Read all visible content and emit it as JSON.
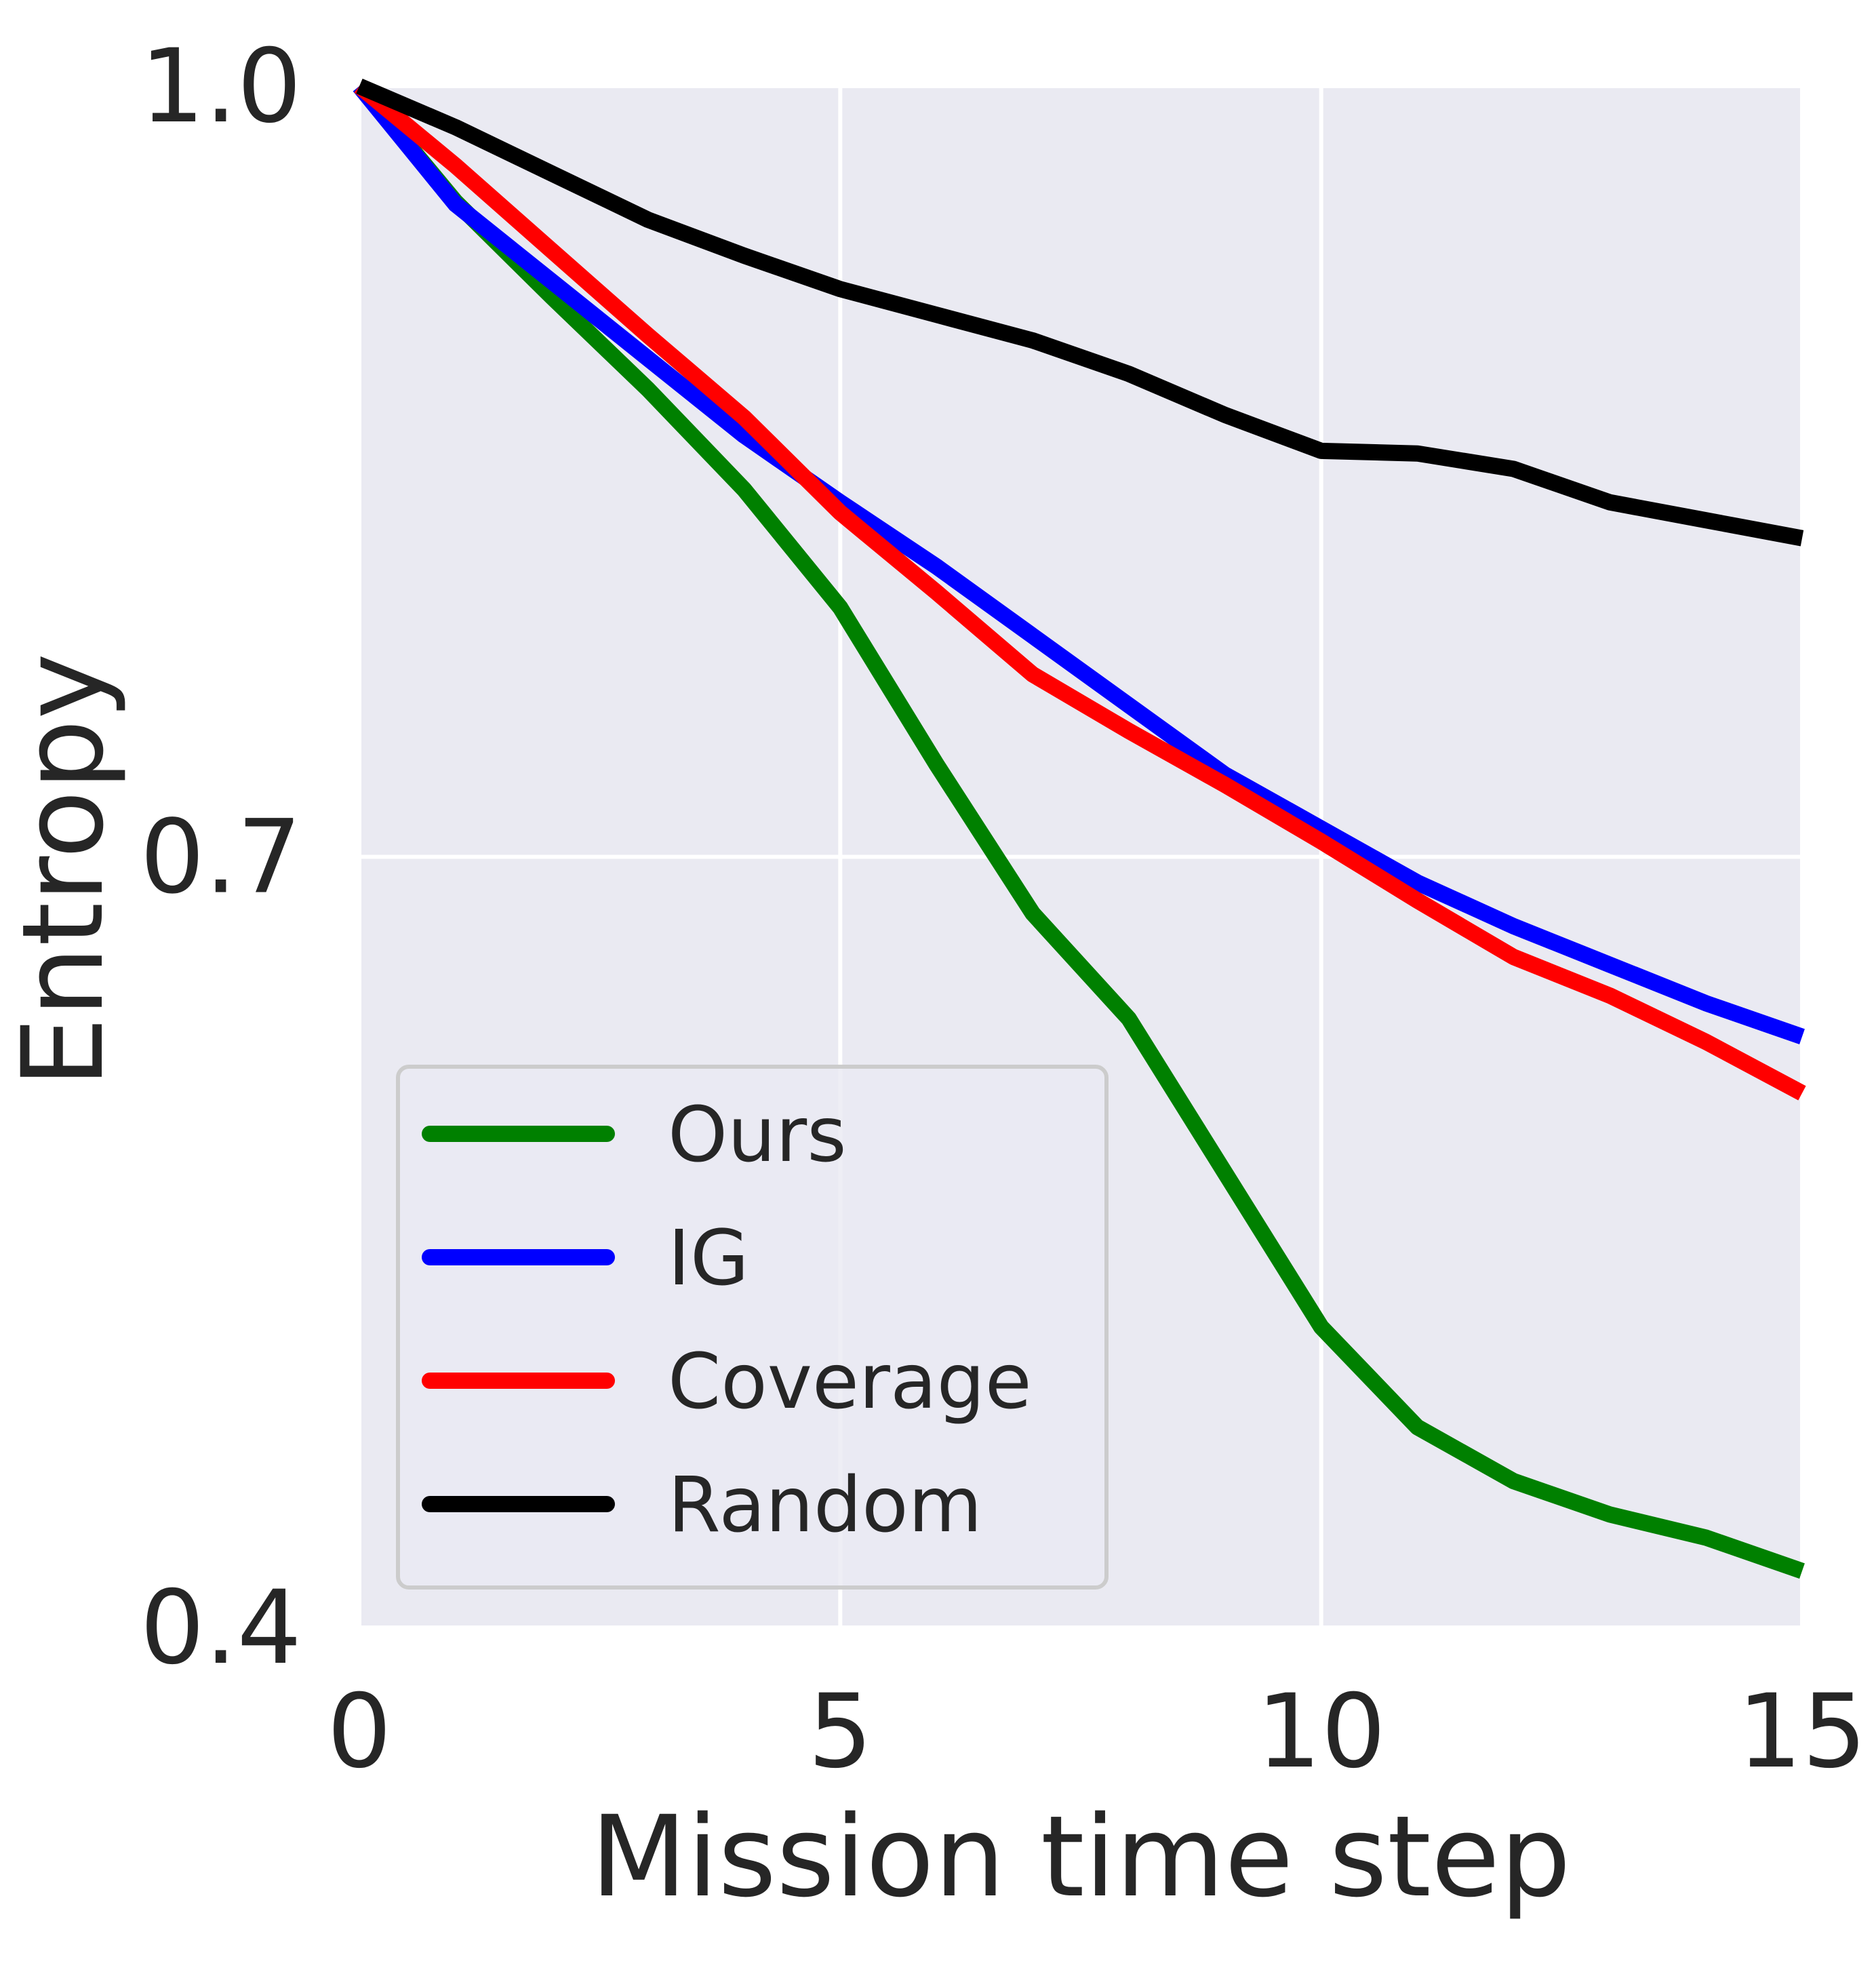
{
  "chart_data": {
    "type": "line",
    "title": "",
    "xlabel": "Mission time step",
    "ylabel": "Entropy",
    "xlim": [
      0,
      15
    ],
    "ylim": [
      0.4,
      1.0
    ],
    "x_ticks": [
      "0",
      "5",
      "10",
      "15"
    ],
    "y_ticks": [
      "1.0",
      "0.7",
      "0.4"
    ],
    "grid": true,
    "legend_position": "lower-left",
    "background_color": "#eaeaf2",
    "x": [
      0,
      1,
      2,
      3,
      4,
      5,
      6,
      7,
      8,
      9,
      10,
      11,
      12,
      13,
      14,
      15
    ],
    "series": [
      {
        "name": "Ours",
        "color": "#008000",
        "values": [
          1.0,
          0.955,
          0.918,
          0.882,
          0.843,
          0.797,
          0.736,
          0.678,
          0.637,
          0.577,
          0.517,
          0.478,
          0.457,
          0.444,
          0.435,
          0.422
        ]
      },
      {
        "name": "IG",
        "color": "#0000ff",
        "values": [
          1.0,
          0.954,
          0.924,
          0.894,
          0.864,
          0.838,
          0.813,
          0.786,
          0.759,
          0.732,
          0.711,
          0.69,
          0.673,
          0.658,
          0.643,
          0.63
        ]
      },
      {
        "name": "Coverage",
        "color": "#ff0000",
        "values": [
          1.0,
          0.969,
          0.936,
          0.903,
          0.871,
          0.834,
          0.803,
          0.771,
          0.749,
          0.728,
          0.706,
          0.683,
          0.661,
          0.646,
          0.628,
          0.608
        ]
      },
      {
        "name": "Random",
        "color": "#000000",
        "values": [
          1.0,
          0.984,
          0.966,
          0.948,
          0.934,
          0.921,
          0.911,
          0.901,
          0.888,
          0.872,
          0.858,
          0.857,
          0.851,
          0.838,
          0.831,
          0.824
        ]
      }
    ]
  }
}
